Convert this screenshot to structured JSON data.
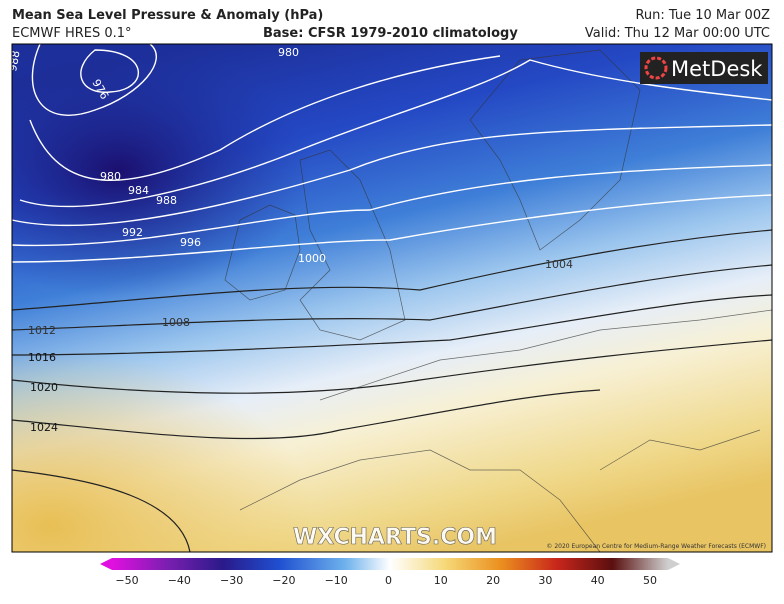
{
  "header": {
    "title": "Mean Sea Level Pressure & Anomaly (hPa)",
    "model": "ECMWF HRES 0.1°",
    "base": "Base: CFSR 1979-2010 climatology",
    "run": "Run: Tue 10 Mar 00Z",
    "valid": "Valid: Thu 12 Mar 00:00 UTC"
  },
  "map": {
    "isobar_labels": [
      "988",
      "976",
      "980",
      "980",
      "984",
      "988",
      "992",
      "996",
      "1000",
      "1004",
      "1008",
      "1012",
      "1016",
      "1020",
      "1024"
    ],
    "watermark": "WXCHARTS.COM",
    "logo": "MetDesk",
    "copyright": "© 2020 European Centre for Medium-Range Weather Forecasts (ECMWF)"
  },
  "legend": {
    "ticks": [
      "−50",
      "−40",
      "−30",
      "−20",
      "−10",
      "0",
      "10",
      "20",
      "30",
      "40",
      "50"
    ]
  }
}
